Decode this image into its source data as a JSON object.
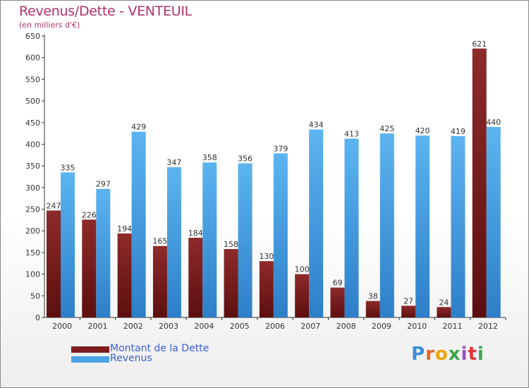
{
  "header": {
    "title": "Revenus/Dette - VENTEUIL",
    "subtitle": "(en milliers d'€)"
  },
  "legend": [
    {
      "label": "Montant de la Dette",
      "color": "#7b1d1d"
    },
    {
      "label": "Revenus",
      "color": "#4aa3e6"
    }
  ],
  "brand": {
    "text": "Proxiti",
    "letter_colors": [
      "#3d8fd6",
      "#e9632a",
      "#f0a500",
      "#3aa84a",
      "#9a4fc1",
      "#e2343b",
      "#3aa84a"
    ]
  },
  "colors": {
    "dette": "#7b1d1d",
    "revenus": "#4aa3e6",
    "title": "#b0306a",
    "axis": "#333333"
  },
  "chart_data": {
    "type": "bar",
    "title": "Revenus/Dette - VENTEUIL",
    "subtitle": "(en milliers d'€)",
    "xlabel": "",
    "ylabel": "",
    "ylim": [
      0,
      650
    ],
    "yticks": [
      0,
      50,
      100,
      150,
      200,
      250,
      300,
      350,
      400,
      450,
      500,
      550,
      600,
      650
    ],
    "grid": false,
    "legend_position": "bottom-left",
    "categories": [
      "2000",
      "2001",
      "2002",
      "2003",
      "2004",
      "2005",
      "2006",
      "2007",
      "2008",
      "2009",
      "2010",
      "2011",
      "2012"
    ],
    "series": [
      {
        "name": "Montant de la Dette",
        "values": [
          247,
          226,
          194,
          165,
          184,
          158,
          130,
          100,
          69,
          38,
          27,
          24,
          621
        ]
      },
      {
        "name": "Revenus",
        "values": [
          335,
          297,
          429,
          347,
          358,
          356,
          379,
          434,
          413,
          425,
          420,
          419,
          440
        ]
      }
    ]
  }
}
